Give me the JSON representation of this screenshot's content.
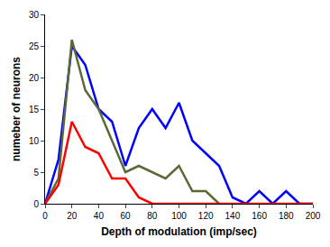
{
  "chart_data": {
    "type": "line",
    "x_label": "Depth of modulation (imp/sec)",
    "y_label": "numeber of neurons",
    "x": [
      0,
      10,
      20,
      30,
      40,
      50,
      60,
      70,
      80,
      90,
      100,
      110,
      120,
      130,
      140,
      150,
      160,
      170,
      180,
      190,
      200
    ],
    "series": [
      {
        "color": "#0000ff",
        "values": [
          0,
          7,
          25,
          22,
          15,
          13,
          6,
          12,
          15,
          12,
          16,
          10,
          8,
          6,
          1,
          0,
          2,
          0,
          2,
          0,
          0
        ]
      },
      {
        "color": "#5a6a35",
        "values": [
          0,
          4,
          26,
          18,
          15,
          10,
          5,
          6,
          5,
          4,
          6,
          2,
          2,
          0,
          null,
          null,
          null,
          null,
          null,
          null,
          null
        ]
      },
      {
        "color": "#ff0000",
        "values": [
          0,
          3,
          13,
          9,
          8,
          4,
          4,
          1,
          0,
          0,
          0,
          0,
          0,
          0,
          0,
          0,
          0,
          0,
          0,
          0,
          0
        ]
      }
    ],
    "xlim": [
      0,
      200
    ],
    "xticks": [
      0,
      20,
      40,
      60,
      80,
      100,
      120,
      140,
      160,
      180,
      200
    ],
    "ylim": [
      0,
      30
    ],
    "yticks": [
      0,
      5,
      10,
      15,
      20,
      25,
      30
    ],
    "grid": false
  }
}
